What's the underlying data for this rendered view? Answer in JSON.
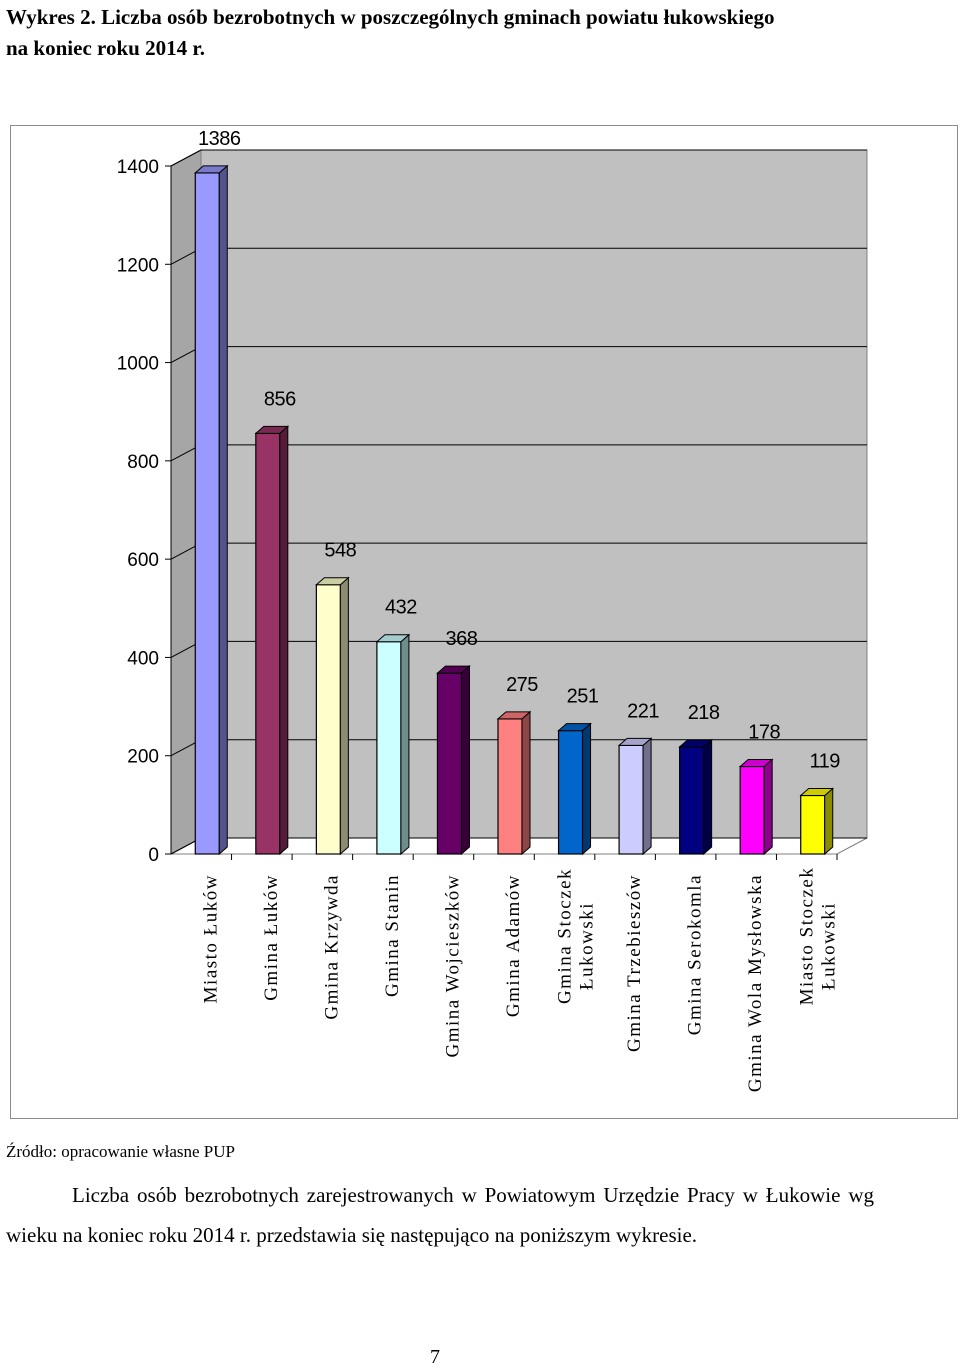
{
  "header": {
    "title_line1": "Wykres 2. Liczba osób bezrobotnych w poszczególnych gminach powiatu łukowskiego",
    "title_line2": "na koniec roku  2014 r."
  },
  "chart_data": {
    "type": "bar",
    "categories": [
      [
        "Miasto Łuków"
      ],
      [
        "Gmina Łuków"
      ],
      [
        "Gmina Krzywda"
      ],
      [
        "Gmina Stanin"
      ],
      [
        "Gmina Wojcieszków"
      ],
      [
        "Gmina Adamów"
      ],
      [
        "Gmina Stoczek",
        "Łukowski"
      ],
      [
        "Gmina Trzebieszów"
      ],
      [
        "Gmina Serokomla"
      ],
      [
        "Gmina Wola Mysłowska"
      ],
      [
        "Miasto Stoczek",
        "Łukowski"
      ]
    ],
    "values": [
      1386,
      856,
      548,
      432,
      368,
      275,
      251,
      221,
      218,
      178,
      119
    ],
    "colors": [
      "#9999ff",
      "#993366",
      "#ffffcc",
      "#ccffff",
      "#660066",
      "#ff8080",
      "#0066cc",
      "#ccccff",
      "#000080",
      "#ff00ff",
      "#ffff00"
    ],
    "y_ticks": [
      0,
      200,
      400,
      600,
      800,
      1000,
      1200,
      1400
    ],
    "ylim": [
      0,
      1400
    ],
    "wall_color": "#c0c0c0",
    "grid": true,
    "legend": "none"
  },
  "footer": {
    "source": "Źródło: opracowanie własne PUP",
    "paragraph": "Liczba osób bezrobotnych zarejestrowanych w Powiatowym Urzędzie Pracy w Łukowie wg wieku na koniec roku 2014 r. przedstawia się następująco na poniższym wykresie.",
    "page_number": "7"
  }
}
